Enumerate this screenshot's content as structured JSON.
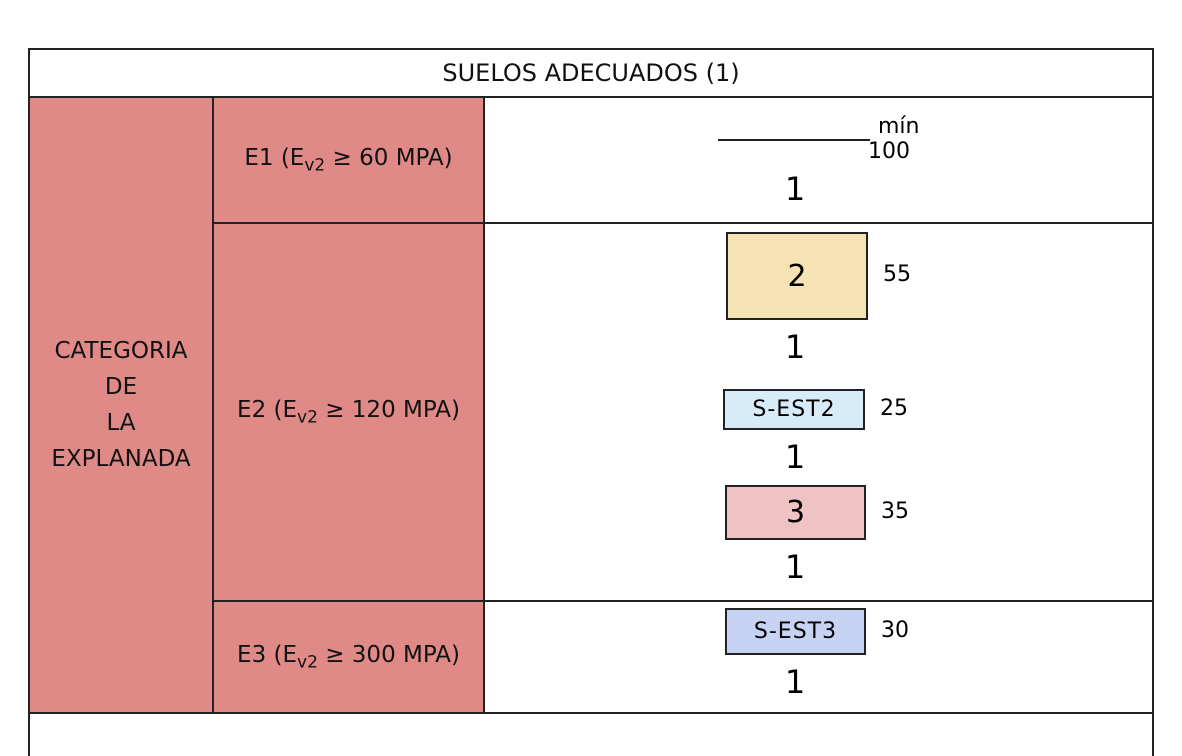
{
  "header": {
    "title": "SUELOS ADECUADOS (1)"
  },
  "category": {
    "lines": [
      "CATEGORIA",
      "DE",
      "LA",
      "EXPLANADA"
    ],
    "color": "#e08a87"
  },
  "rows": [
    {
      "label": {
        "main": "E1 (E",
        "sub": "v2",
        "rest": " ≥ 60 MPA)"
      },
      "section": {
        "min_label": "mín",
        "thickness": 100,
        "base": "1"
      }
    },
    {
      "label": {
        "main": "E2 (E",
        "sub": "v2",
        "rest": " ≥ 120 MPA)"
      },
      "layers": [
        {
          "label": "2",
          "thickness": 55,
          "color": "#f5e3b3",
          "base": "1"
        },
        {
          "label": "S-EST2",
          "thickness": 25,
          "color": "#d8ebf8",
          "base": "1"
        },
        {
          "label": "3",
          "thickness": 35,
          "color": "#efc3c3",
          "base": "1"
        }
      ]
    },
    {
      "label": {
        "main": "E3 (E",
        "sub": "v2",
        "rest": " ≥ 300 MPA)"
      },
      "layers": [
        {
          "label": "S-EST3",
          "thickness": 30,
          "color": "#c7d3f3",
          "base": "1"
        }
      ]
    }
  ]
}
